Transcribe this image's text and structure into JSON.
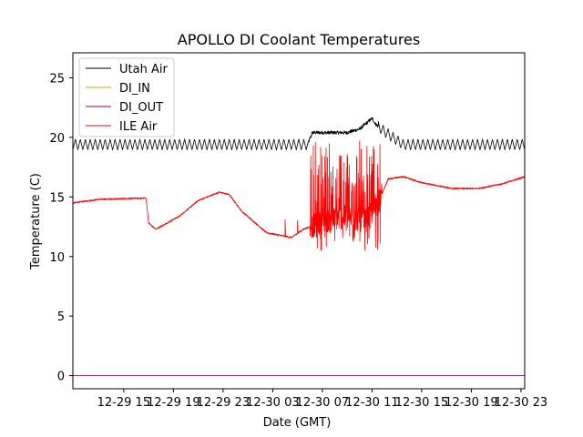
{
  "chart_data": {
    "type": "line",
    "title": "APOLLO DI Coolant Temperatures",
    "xlabel": "Date (GMT)",
    "ylabel": "Temperature (C)",
    "xlim_hours": [
      -1.1,
      35.3
    ],
    "ylim": [
      -1.1,
      27.1
    ],
    "yticks": [
      0,
      5,
      10,
      15,
      20,
      25
    ],
    "x_ticks": [
      {
        "label": "12-29 15",
        "hours": 3
      },
      {
        "label": "12-29 19",
        "hours": 7
      },
      {
        "label": "12-29 23",
        "hours": 11
      },
      {
        "label": "12-30 03",
        "hours": 15
      },
      {
        "label": "12-30 07",
        "hours": 19
      },
      {
        "label": "12-30 11",
        "hours": 23
      },
      {
        "label": "12-30 15",
        "hours": 27
      },
      {
        "label": "12-30 19",
        "hours": 31
      },
      {
        "label": "12-30 23",
        "hours": 35
      }
    ],
    "legend_location": "upper-left",
    "series": [
      {
        "name": "Utah Air",
        "color": "#000000",
        "baseline": [
          [
            -1.1,
            19.4
          ],
          [
            17.8,
            19.4
          ],
          [
            18.2,
            20.4
          ],
          [
            21.0,
            20.4
          ],
          [
            22.0,
            20.7
          ],
          [
            23.0,
            21.6
          ],
          [
            23.3,
            21.1
          ],
          [
            24.0,
            20.5
          ],
          [
            25.5,
            19.4
          ],
          [
            35.3,
            19.4
          ]
        ],
        "oscillation_amplitude": 0.45,
        "oscillation_period_hours": 0.4,
        "stable_noise": 0.15,
        "stable_range_hours": [
          17.8,
          23.5
        ]
      },
      {
        "name": "DI_IN",
        "color": "#d4a017",
        "constant": 0.0
      },
      {
        "name": "DI_OUT",
        "color": "#800080",
        "constant": 0.0
      },
      {
        "name": "ILE Air",
        "color": "#ff0000",
        "baseline": [
          [
            -1.1,
            14.5
          ],
          [
            1.0,
            14.8
          ],
          [
            4.8,
            14.9
          ],
          [
            5.0,
            12.8
          ],
          [
            5.6,
            12.3
          ],
          [
            7.5,
            13.4
          ],
          [
            9.0,
            14.7
          ],
          [
            10.7,
            15.4
          ],
          [
            11.5,
            15.2
          ],
          [
            12.5,
            13.8
          ],
          [
            14.5,
            12.0
          ],
          [
            16.5,
            11.6
          ],
          [
            17.5,
            12.3
          ],
          [
            19.3,
            13.0
          ],
          [
            20.8,
            13.3
          ],
          [
            22.5,
            13.0
          ],
          [
            23.5,
            14.5
          ],
          [
            24.3,
            16.5
          ],
          [
            25.5,
            16.7
          ],
          [
            27.0,
            16.2
          ],
          [
            29.5,
            15.7
          ],
          [
            31.5,
            15.7
          ],
          [
            33.5,
            16.1
          ],
          [
            35.3,
            16.7
          ]
        ],
        "noisy_range_hours": [
          18.0,
          23.8
        ],
        "noise_range": [
          10.5,
          19.6
        ],
        "spikes": [
          [
            16.0,
            13.1
          ],
          [
            17.0,
            13.0
          ],
          [
            19.2,
            18.4
          ],
          [
            22.0,
            19.7
          ],
          [
            23.1,
            18.6
          ]
        ]
      }
    ]
  }
}
